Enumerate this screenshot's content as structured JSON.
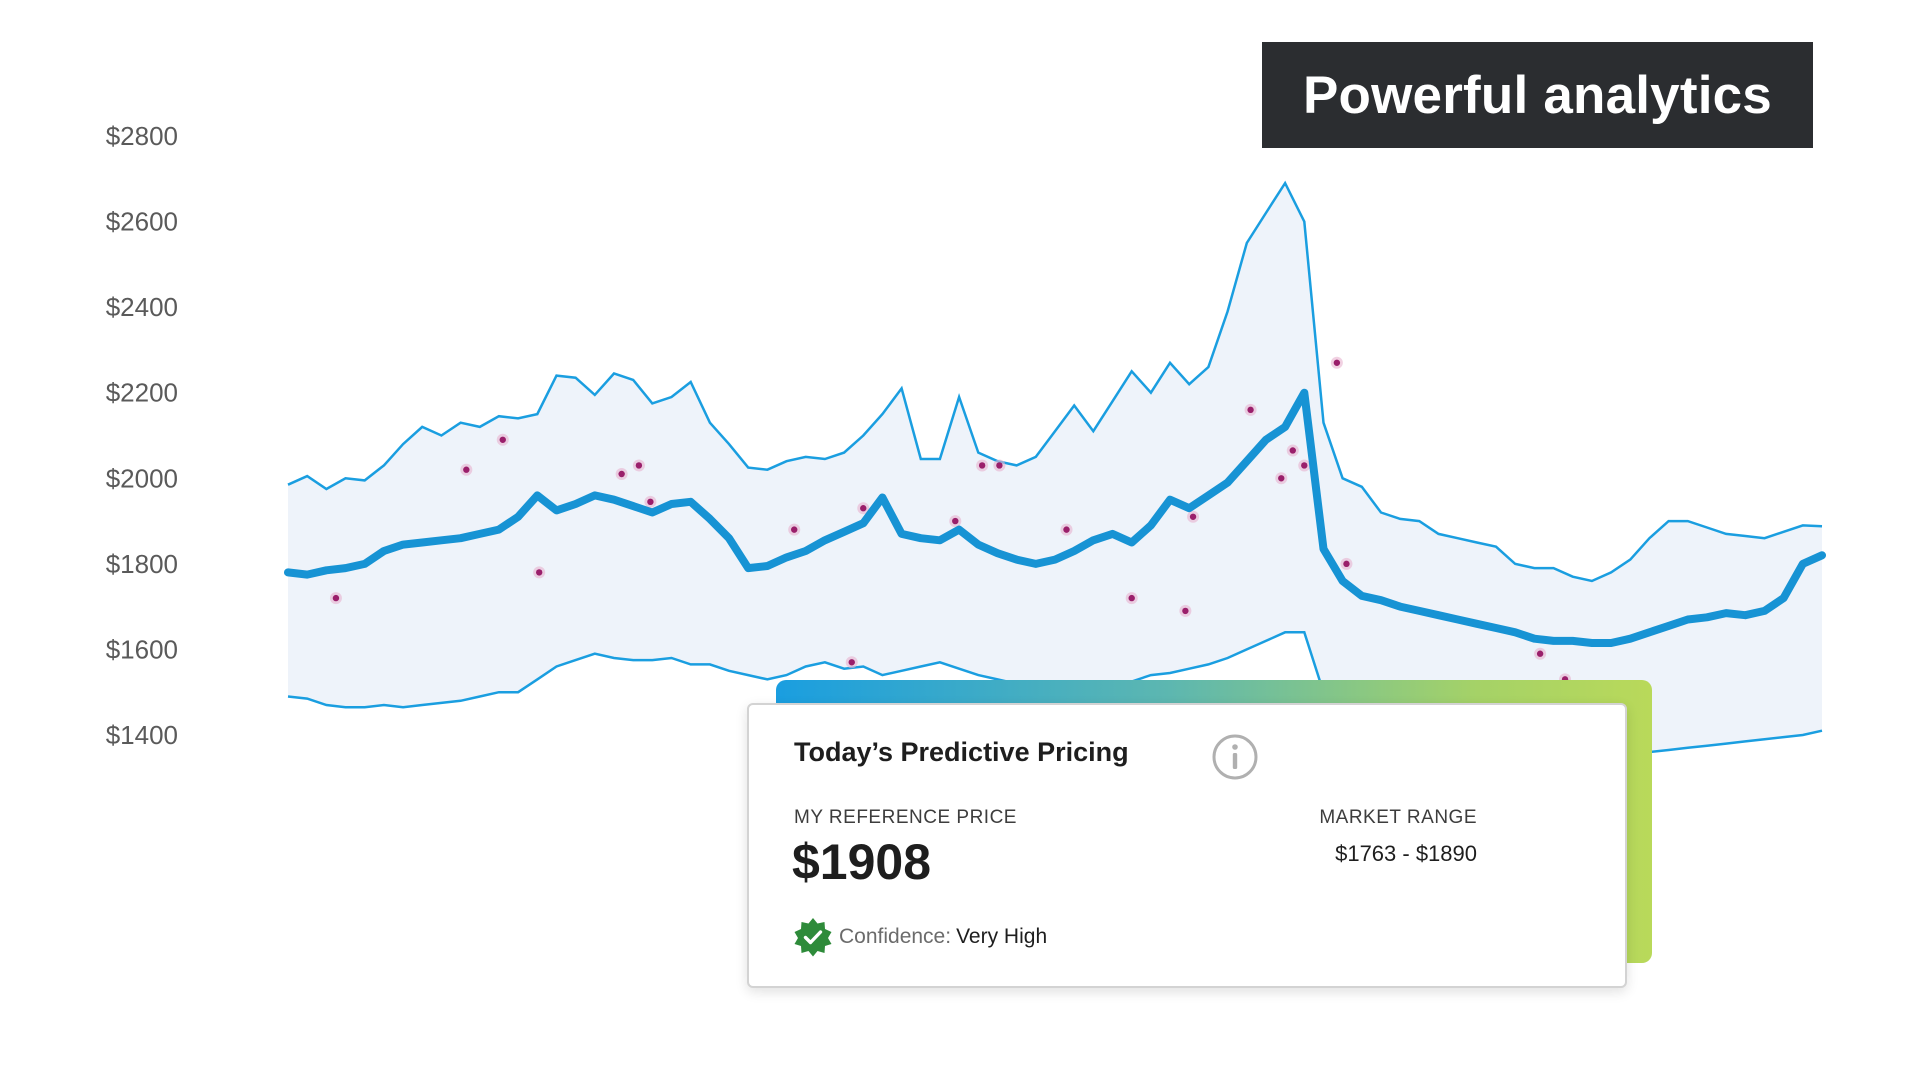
{
  "header": {
    "banner_text": "Powerful analytics"
  },
  "card": {
    "title": "Today’s Predictive Pricing",
    "reference_label": "MY REFERENCE PRICE",
    "reference_value": "$1908",
    "market_range_label": "MARKET RANGE",
    "market_range_value": "$1763 - $1890",
    "confidence_label": "Confidence:",
    "confidence_value": "Very High",
    "icons": [
      "info-icon",
      "verified-badge-icon"
    ],
    "colors": {
      "gradient_start": "#1a9ee0",
      "gradient_end": "#b9d95a",
      "badge": "#2e8b3a"
    }
  },
  "chart_data": {
    "type": "line",
    "title": "",
    "xlabel": "",
    "ylabel": "",
    "ylim": [
      1400,
      2800
    ],
    "yticks": [
      2800,
      2600,
      2400,
      2200,
      2000,
      1800,
      1600,
      1400
    ],
    "ytick_labels": [
      "$2800",
      "$2600",
      "$2400",
      "$2200",
      "$2000",
      "$1800",
      "$1600",
      "$1400"
    ],
    "grid": false,
    "legend": "none",
    "x": [
      0,
      1,
      2,
      3,
      4,
      5,
      6,
      7,
      8,
      9,
      10,
      11,
      12,
      13,
      14,
      15,
      16,
      17,
      18,
      19,
      20,
      21,
      22,
      23,
      24,
      25,
      26,
      27,
      28,
      29,
      30,
      31,
      32,
      33,
      34,
      35,
      36,
      37,
      38,
      39,
      40,
      41,
      42,
      43,
      44,
      45,
      46,
      47,
      48,
      49,
      50,
      51,
      52,
      53,
      54,
      55,
      56,
      57,
      58,
      59,
      60,
      61,
      62,
      63,
      64,
      65,
      66,
      67,
      68,
      69,
      70,
      71,
      72,
      73,
      74,
      75,
      76,
      77,
      78,
      79,
      80
    ],
    "series": [
      {
        "style": "band-upper",
        "color": "#1a9ee0",
        "values": [
          1985,
          2005,
          1975,
          2000,
          1995,
          2030,
          2080,
          2120,
          2100,
          2130,
          2120,
          2145,
          2140,
          2150,
          2240,
          2235,
          2195,
          2245,
          2230,
          2175,
          2190,
          2225,
          2130,
          2080,
          2025,
          2020,
          2040,
          2050,
          2045,
          2060,
          2100,
          2150,
          2210,
          2045,
          2045,
          2190,
          2060,
          2040,
          2030,
          2050,
          2110,
          2170,
          2110,
          2180,
          2250,
          2200,
          2270,
          2220,
          2260,
          2390,
          2550,
          2620,
          2690,
          2600,
          2130,
          2000,
          1980,
          1920,
          1905,
          1900,
          1870,
          1860,
          1850,
          1840,
          1800,
          1790,
          1790,
          1770,
          1760,
          1780,
          1810,
          1860,
          1900,
          1900,
          1885,
          1870,
          1865,
          1860,
          1875,
          1890,
          1888
        ]
      },
      {
        "style": "band-lower",
        "color": "#1a9ee0",
        "values": [
          1490,
          1485,
          1470,
          1465,
          1465,
          1470,
          1465,
          1470,
          1475,
          1480,
          1490,
          1500,
          1500,
          1530,
          1560,
          1575,
          1590,
          1580,
          1575,
          1575,
          1580,
          1565,
          1565,
          1550,
          1540,
          1530,
          1540,
          1560,
          1570,
          1555,
          1560,
          1540,
          1550,
          1560,
          1570,
          1555,
          1540,
          1530,
          1520,
          1525,
          1520,
          1510,
          1515,
          1520,
          1525,
          1540,
          1545,
          1555,
          1565,
          1580,
          1600,
          1620,
          1640,
          1640,
          1500,
          1450,
          1420,
          1395,
          1380,
          1375,
          1370,
          1365,
          1360,
          1345,
          1345,
          1345,
          1345,
          1345,
          1345,
          1350,
          1355,
          1360,
          1365,
          1370,
          1375,
          1380,
          1385,
          1390,
          1395,
          1400,
          1410
        ]
      },
      {
        "style": "reference-price",
        "color": "#1793d4",
        "values": [
          1780,
          1775,
          1785,
          1790,
          1800,
          1830,
          1845,
          1850,
          1855,
          1860,
          1870,
          1880,
          1910,
          1960,
          1925,
          1940,
          1960,
          1950,
          1935,
          1920,
          1940,
          1945,
          1905,
          1860,
          1790,
          1795,
          1815,
          1830,
          1855,
          1875,
          1895,
          1955,
          1870,
          1860,
          1855,
          1880,
          1845,
          1825,
          1810,
          1800,
          1810,
          1830,
          1855,
          1870,
          1850,
          1890,
          1950,
          1930,
          1960,
          1990,
          2040,
          2090,
          2120,
          2200,
          1835,
          1760,
          1725,
          1715,
          1700,
          1690,
          1680,
          1670,
          1660,
          1650,
          1640,
          1625,
          1620,
          1620,
          1615,
          1615,
          1625,
          1640,
          1655,
          1670,
          1675,
          1685,
          1680,
          1690,
          1720,
          1800,
          1820
        ]
      }
    ],
    "scatter_points": [
      {
        "x": 2.5,
        "y": 1720
      },
      {
        "x": 9.3,
        "y": 2020
      },
      {
        "x": 11.2,
        "y": 2090
      },
      {
        "x": 13.1,
        "y": 1780
      },
      {
        "x": 17.4,
        "y": 2010
      },
      {
        "x": 18.3,
        "y": 2030
      },
      {
        "x": 18.9,
        "y": 1945
      },
      {
        "x": 26.4,
        "y": 1880
      },
      {
        "x": 29.4,
        "y": 1570
      },
      {
        "x": 30.0,
        "y": 1930
      },
      {
        "x": 34.8,
        "y": 1900
      },
      {
        "x": 36.2,
        "y": 2030
      },
      {
        "x": 37.1,
        "y": 2030
      },
      {
        "x": 40.6,
        "y": 1880
      },
      {
        "x": 44.0,
        "y": 1720
      },
      {
        "x": 46.8,
        "y": 1690
      },
      {
        "x": 47.2,
        "y": 1910
      },
      {
        "x": 50.2,
        "y": 2160
      },
      {
        "x": 51.8,
        "y": 2000
      },
      {
        "x": 52.4,
        "y": 2065
      },
      {
        "x": 53.0,
        "y": 2030
      },
      {
        "x": 54.7,
        "y": 2270
      },
      {
        "x": 55.2,
        "y": 1800
      },
      {
        "x": 65.3,
        "y": 1590
      },
      {
        "x": 66.6,
        "y": 1530
      }
    ]
  }
}
